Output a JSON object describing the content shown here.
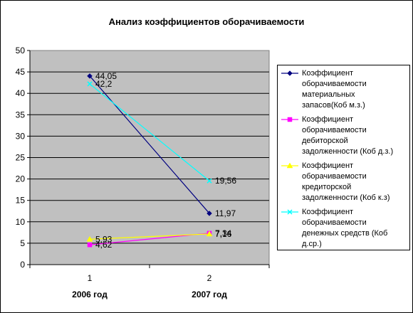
{
  "chart_data": {
    "type": "line",
    "title": "Анализ коэффициентов оборачиваемости",
    "categories": [
      "1",
      "2"
    ],
    "category_sublabels": [
      "2006 год",
      "2007 год"
    ],
    "ylim": [
      0,
      50
    ],
    "yticks": [
      0,
      5,
      10,
      15,
      20,
      25,
      30,
      35,
      40,
      45,
      50
    ],
    "plot_background": "#c0c0c0",
    "grid": true,
    "legend_position": "right",
    "series": [
      {
        "name": "Коэффициент оборачиваемости материальных запасов(Коб м.з.)",
        "legend_lines": [
          "Коэффициент",
          "оборачиваемости",
          "материальных",
          "запасов(Коб м.з.)"
        ],
        "values": [
          44.05,
          11.97
        ],
        "labels": [
          "44,05",
          "11,97"
        ],
        "color": "#000080",
        "marker": "diamond"
      },
      {
        "name": "Коэффициент оборачиваемости дебиторской задолженности (Коб д.з.)",
        "legend_lines": [
          "Коэффициент",
          "оборачиваемости",
          "дебиторской",
          "задолженности (Коб д.з.)"
        ],
        "values": [
          4.62,
          7.34
        ],
        "labels": [
          "4,62",
          "7,34"
        ],
        "color": "#ff00ff",
        "marker": "square"
      },
      {
        "name": "Коэффициент оборачиваемости кредиторской задолженности (Коб к.з)",
        "legend_lines": [
          "Коэффициент",
          "оборачиваемости",
          "кредиторской",
          "задолженности (Коб к.з)"
        ],
        "values": [
          5.93,
          7.16
        ],
        "labels": [
          "5,93",
          "7,16"
        ],
        "color": "#ffff00",
        "marker": "triangle"
      },
      {
        "name": "Коэффициент оборачиваемости денежных средств (Коб д.ср.)",
        "legend_lines": [
          "Коэффициент",
          "оборачиваемости",
          "денежных средств (Коб",
          "д.ср.)"
        ],
        "values": [
          42.2,
          19.56
        ],
        "labels": [
          "42,2",
          "19,56"
        ],
        "color": "#00ffff",
        "marker": "x"
      }
    ]
  }
}
